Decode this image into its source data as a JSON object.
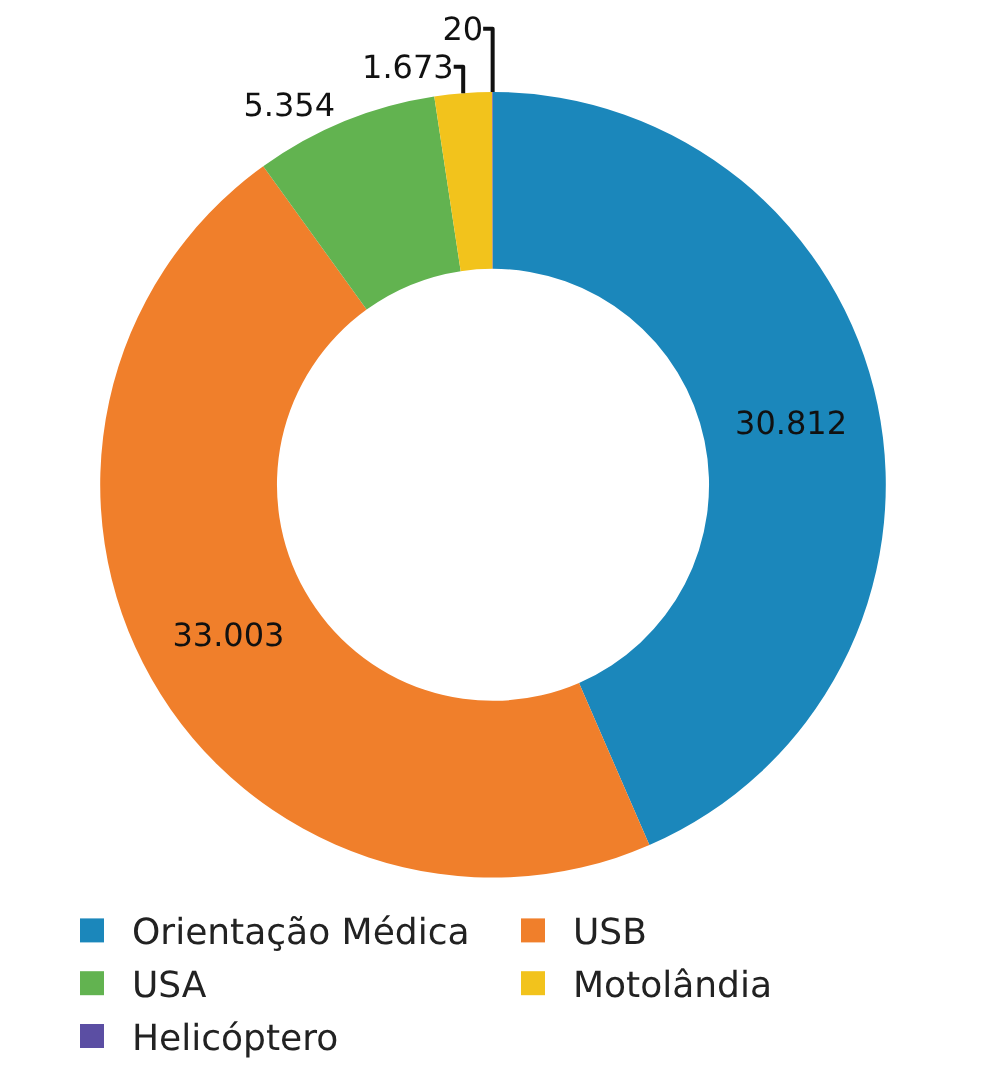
{
  "chart_data": {
    "type": "donut",
    "categories": [
      "Orientação Médica",
      "USB",
      "USA",
      "Motolândia",
      "Helicóptero"
    ],
    "values": [
      30812,
      33003,
      5354,
      1673,
      20
    ],
    "value_labels": [
      "30.812",
      "33.003",
      "5.354",
      "1.673",
      "20"
    ],
    "colors": [
      "#1b87bb",
      "#f07f2b",
      "#62b350",
      "#f2c31c",
      "#5b4ea3"
    ],
    "legend": "bottom"
  }
}
